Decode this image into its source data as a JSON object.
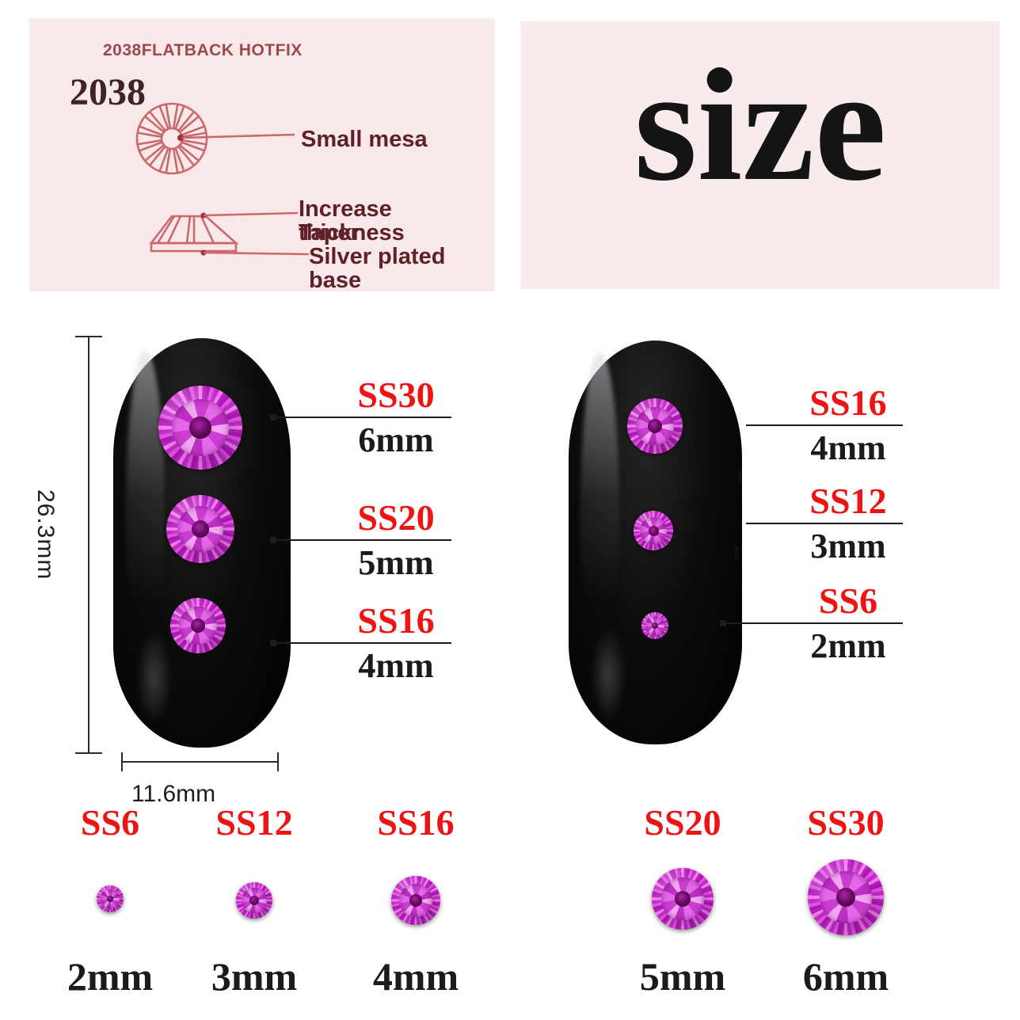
{
  "colors": {
    "background": "#ffffff",
    "panel_pink_left": "#f9e8e9",
    "panel_pink_right": "#f9eaec",
    "diagram_line_red": "#c9696b",
    "diagram_text_maroon": "#5e2127",
    "header_maroon": "#9b494d",
    "callout_red": "#ee1414",
    "text_black": "#1b1b1b",
    "gem_magenta": "#c92fce",
    "gem_center_dark": "#3c053a",
    "nail_black": "#0d0d0d"
  },
  "spec_panel": {
    "header": "2038FLATBACK HOTFIX",
    "model": "2038",
    "top_view_label": "Small mesa",
    "side_view_label_1": "Increase thickness",
    "side_view_label_2": "Taper",
    "side_view_label_3": "Silver plated base"
  },
  "size_panel": {
    "title": "size",
    "title_display": {
      "pre": "s",
      "i": "ı",
      "post": "ze"
    }
  },
  "left_nail": {
    "length_label": "26.3mm",
    "width_label": "11.6mm",
    "callouts": [
      {
        "code": "SS30",
        "diameter": "6mm"
      },
      {
        "code": "SS20",
        "diameter": "5mm"
      },
      {
        "code": "SS16",
        "diameter": "4mm"
      }
    ]
  },
  "right_nail": {
    "callouts": [
      {
        "code": "SS16",
        "diameter": "4mm"
      },
      {
        "code": "SS12",
        "diameter": "3mm"
      },
      {
        "code": "SS6",
        "diameter": "2mm"
      }
    ]
  },
  "size_chart": [
    {
      "code": "SS6",
      "diameter": "2mm"
    },
    {
      "code": "SS12",
      "diameter": "3mm"
    },
    {
      "code": "SS16",
      "diameter": "4mm"
    },
    {
      "code": "SS20",
      "diameter": "5mm"
    },
    {
      "code": "SS30",
      "diameter": "6mm"
    }
  ]
}
